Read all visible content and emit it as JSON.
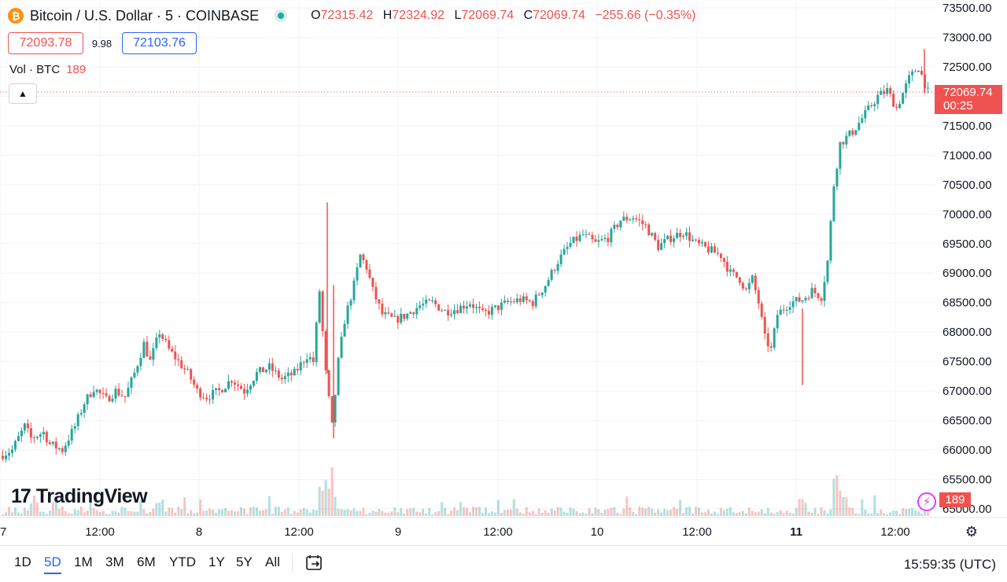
{
  "header": {
    "symbol_icon": "bitcoin-icon",
    "title": "Bitcoin / U.S. Dollar · 5 · COINBASE",
    "ohlc": {
      "o_label": "O",
      "o": "72315.42",
      "h_label": "H",
      "h": "72324.92",
      "l_label": "L",
      "l": "72069.74",
      "c_label": "C",
      "c": "72069.74",
      "change": "−255.66 (−0.35%)"
    }
  },
  "trade": {
    "bid": "72093.78",
    "spread": "9.98",
    "ask": "72103.76"
  },
  "volume": {
    "label": "Vol · BTC",
    "value": "189"
  },
  "price_axis": {
    "ticks": [
      "73500.00",
      "73000.00",
      "72500.00",
      "71500.00",
      "71000.00",
      "70500.00",
      "70000.00",
      "69500.00",
      "69000.00",
      "68500.00",
      "68000.00",
      "67500.00",
      "67000.00",
      "66500.00",
      "66000.00",
      "65500.00",
      "65000.00"
    ],
    "last_price": "72069.74",
    "countdown": "00:25",
    "volume_label": "189"
  },
  "time_axis": {
    "labels": [
      "7",
      "12:00",
      "8",
      "12:00",
      "9",
      "12:00",
      "10",
      "12:00",
      "11",
      "12:00"
    ]
  },
  "branding": {
    "logo": "TradingView",
    "logo_mark": "17"
  },
  "colors": {
    "up": "#26a69a",
    "down": "#ef5350",
    "accent": "#2962ff",
    "brand": "#f7931a"
  },
  "ranges": [
    "1D",
    "5D",
    "1M",
    "3M",
    "6M",
    "YTD",
    "1Y",
    "5Y",
    "All"
  ],
  "active_range": "5D",
  "clock": "15:59:35 (UTC)",
  "chart_data": {
    "type": "candlestick",
    "symbol": "BTCUSD",
    "interval": "5",
    "ylim": [
      65000,
      73500
    ],
    "y_ticks": [
      65000,
      65500,
      66000,
      66500,
      67000,
      67500,
      68000,
      68500,
      69000,
      69500,
      70000,
      70500,
      71000,
      71500,
      72000,
      72500,
      73000,
      73500
    ],
    "x_ticks": [
      "7",
      "12:00",
      "8",
      "12:00",
      "9",
      "12:00",
      "10",
      "12:00",
      "11",
      "12:00"
    ],
    "last_price": 72069.74,
    "price_path": [
      [
        0,
        65900
      ],
      [
        4,
        66000
      ],
      [
        8,
        66400
      ],
      [
        10,
        66200
      ],
      [
        14,
        66300
      ],
      [
        16,
        66100
      ],
      [
        20,
        66000
      ],
      [
        24,
        66400
      ],
      [
        27,
        66800
      ],
      [
        30,
        67050
      ],
      [
        34,
        66850
      ],
      [
        37,
        67000
      ],
      [
        40,
        66900
      ],
      [
        43,
        67300
      ],
      [
        46,
        67800
      ],
      [
        48,
        67500
      ],
      [
        51,
        68000
      ],
      [
        54,
        67700
      ],
      [
        57,
        67500
      ],
      [
        60,
        67300
      ],
      [
        63,
        67000
      ],
      [
        66,
        66900
      ],
      [
        70,
        67000
      ],
      [
        74,
        67200
      ],
      [
        78,
        67000
      ],
      [
        82,
        67300
      ],
      [
        86,
        67400
      ],
      [
        90,
        67200
      ],
      [
        94,
        67300
      ],
      [
        98,
        67600
      ],
      [
        100,
        67500
      ],
      [
        102,
        68700
      ],
      [
        104,
        67300
      ],
      [
        106,
        66400
      ],
      [
        108,
        67500
      ],
      [
        110,
        68200
      ],
      [
        113,
        68800
      ],
      [
        115,
        69300
      ],
      [
        117,
        69100
      ],
      [
        119,
        68700
      ],
      [
        122,
        68300
      ],
      [
        126,
        68200
      ],
      [
        130,
        68300
      ],
      [
        134,
        68450
      ],
      [
        138,
        68500
      ],
      [
        142,
        68350
      ],
      [
        146,
        68400
      ],
      [
        150,
        68500
      ],
      [
        154,
        68300
      ],
      [
        158,
        68400
      ],
      [
        162,
        68500
      ],
      [
        166,
        68550
      ],
      [
        170,
        68500
      ],
      [
        174,
        68800
      ],
      [
        178,
        69200
      ],
      [
        182,
        69500
      ],
      [
        186,
        69650
      ],
      [
        190,
        69500
      ],
      [
        194,
        69600
      ],
      [
        198,
        69900
      ],
      [
        202,
        69950
      ],
      [
        206,
        69800
      ],
      [
        210,
        69450
      ],
      [
        214,
        69600
      ],
      [
        218,
        69700
      ],
      [
        222,
        69500
      ],
      [
        226,
        69400
      ],
      [
        230,
        69300
      ],
      [
        233,
        69000
      ],
      [
        236,
        68900
      ],
      [
        238,
        68700
      ],
      [
        240,
        68900
      ],
      [
        242,
        68500
      ],
      [
        244,
        67900
      ],
      [
        246,
        67700
      ],
      [
        248,
        68300
      ],
      [
        252,
        68500
      ],
      [
        256,
        68550
      ],
      [
        259,
        68700
      ],
      [
        262,
        68600
      ],
      [
        264,
        69200
      ],
      [
        266,
        70500
      ],
      [
        268,
        71200
      ],
      [
        272,
        71400
      ],
      [
        276,
        71700
      ],
      [
        280,
        72000
      ],
      [
        283,
        72100
      ],
      [
        286,
        71800
      ],
      [
        290,
        72300
      ],
      [
        293,
        72500
      ],
      [
        296,
        72070
      ]
    ],
    "volume_note": "volume histogram per 5-minute bar",
    "volume_spikes": [
      [
        102,
        60
      ],
      [
        103,
        35
      ],
      [
        104,
        55
      ],
      [
        266,
        45
      ],
      [
        268,
        30
      ],
      [
        255,
        25
      ],
      [
        50,
        20
      ],
      [
        10,
        18
      ]
    ]
  }
}
